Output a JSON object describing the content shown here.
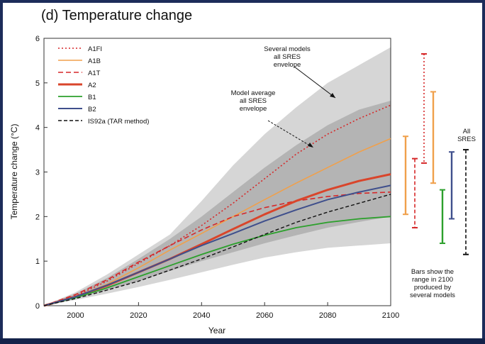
{
  "chart_data": {
    "type": "line",
    "title": "(d) Temperature change",
    "xlabel": "Year",
    "ylabel": "Temperature change (°C)",
    "xlim": [
      1990,
      2100
    ],
    "ylim": [
      0,
      6
    ],
    "xticks": [
      2000,
      2020,
      2040,
      2060,
      2080,
      2100
    ],
    "yticks": [
      0,
      1,
      2,
      3,
      4,
      5,
      6
    ],
    "grid": false,
    "legend_position": "top-left",
    "series": [
      {
        "name": "A1FI",
        "color": "#d62728",
        "dash": "2,3",
        "width": 1.6,
        "x": [
          1990,
          2000,
          2010,
          2020,
          2030,
          2040,
          2050,
          2060,
          2070,
          2080,
          2090,
          2100
        ],
        "y": [
          0,
          0.22,
          0.55,
          0.95,
          1.35,
          1.8,
          2.3,
          2.85,
          3.4,
          3.85,
          4.2,
          4.5
        ]
      },
      {
        "name": "A1B",
        "color": "#f0a04b",
        "dash": "",
        "width": 1.6,
        "x": [
          1990,
          2000,
          2010,
          2020,
          2030,
          2040,
          2050,
          2060,
          2070,
          2080,
          2090,
          2100
        ],
        "y": [
          0,
          0.2,
          0.48,
          0.85,
          1.25,
          1.62,
          2.0,
          2.38,
          2.75,
          3.1,
          3.45,
          3.75
        ]
      },
      {
        "name": "A1T",
        "color": "#d62728",
        "dash": "7,4",
        "width": 1.6,
        "x": [
          1990,
          2000,
          2010,
          2020,
          2030,
          2040,
          2050,
          2060,
          2070,
          2080,
          2090,
          2100
        ],
        "y": [
          0,
          0.25,
          0.58,
          0.98,
          1.35,
          1.7,
          2.0,
          2.2,
          2.35,
          2.45,
          2.52,
          2.55
        ]
      },
      {
        "name": "A2",
        "color": "#d9452b",
        "dash": "",
        "width": 3,
        "x": [
          1990,
          2000,
          2010,
          2020,
          2030,
          2040,
          2050,
          2060,
          2070,
          2080,
          2090,
          2100
        ],
        "y": [
          0,
          0.2,
          0.45,
          0.75,
          1.05,
          1.38,
          1.72,
          2.05,
          2.35,
          2.6,
          2.8,
          2.95
        ]
      },
      {
        "name": "B1",
        "color": "#2ca02c",
        "dash": "",
        "width": 1.8,
        "x": [
          1990,
          2000,
          2010,
          2020,
          2030,
          2040,
          2050,
          2060,
          2070,
          2080,
          2090,
          2100
        ],
        "y": [
          0,
          0.18,
          0.4,
          0.65,
          0.9,
          1.15,
          1.38,
          1.58,
          1.75,
          1.87,
          1.95,
          2.0
        ]
      },
      {
        "name": "B2",
        "color": "#3f4f8c",
        "dash": "",
        "width": 2,
        "x": [
          1990,
          2000,
          2010,
          2020,
          2030,
          2040,
          2050,
          2060,
          2070,
          2080,
          2090,
          2100
        ],
        "y": [
          0,
          0.2,
          0.46,
          0.75,
          1.05,
          1.35,
          1.62,
          1.9,
          2.15,
          2.38,
          2.55,
          2.7
        ]
      },
      {
        "name": "IS92a (TAR method)",
        "color": "#111111",
        "dash": "5,3",
        "width": 1.4,
        "x": [
          1990,
          2000,
          2010,
          2020,
          2030,
          2040,
          2050,
          2060,
          2070,
          2080,
          2090,
          2100
        ],
        "y": [
          0,
          0.16,
          0.35,
          0.55,
          0.8,
          1.05,
          1.32,
          1.6,
          1.87,
          2.1,
          2.3,
          2.5
        ]
      }
    ],
    "envelopes": [
      {
        "name": "Several models all SRES envelope",
        "color": "#d6d6d6",
        "x": [
          1990,
          2000,
          2010,
          2020,
          2030,
          2040,
          2050,
          2060,
          2070,
          2080,
          2090,
          2100
        ],
        "upper": [
          0,
          0.3,
          0.7,
          1.15,
          1.6,
          2.35,
          3.15,
          3.85,
          4.45,
          5.0,
          5.4,
          5.8
        ],
        "lower": [
          0,
          0.13,
          0.27,
          0.42,
          0.58,
          0.75,
          0.92,
          1.08,
          1.2,
          1.3,
          1.35,
          1.4
        ]
      },
      {
        "name": "Model average all SRES envelope",
        "color": "#b4b4b4",
        "x": [
          1990,
          2000,
          2010,
          2020,
          2030,
          2040,
          2050,
          2060,
          2070,
          2080,
          2090,
          2100
        ],
        "upper": [
          0,
          0.27,
          0.62,
          1.05,
          1.5,
          2.0,
          2.55,
          3.1,
          3.6,
          4.05,
          4.4,
          4.6
        ],
        "lower": [
          0,
          0.16,
          0.35,
          0.55,
          0.78,
          1.0,
          1.2,
          1.4,
          1.58,
          1.75,
          1.88,
          2.0
        ]
      }
    ],
    "range_bars": [
      {
        "color": "#f0a04b",
        "lo": 2.05,
        "hi": 3.8,
        "style": "solid"
      },
      {
        "color": "#d62728",
        "lo": 1.75,
        "hi": 3.3,
        "style": "dashed"
      },
      {
        "color": "#d62728",
        "lo": 3.2,
        "hi": 5.65,
        "style": "dotted"
      },
      {
        "color": "#f0a04b",
        "lo": 2.75,
        "hi": 4.8,
        "style": "solid"
      },
      {
        "color": "#2ca02c",
        "lo": 1.4,
        "hi": 2.6,
        "style": "solid"
      },
      {
        "color": "#3f4f8c",
        "lo": 1.95,
        "hi": 3.45,
        "style": "solid"
      },
      {
        "color": "#111111",
        "lo": 1.15,
        "hi": 3.5,
        "style": "dashed"
      }
    ],
    "annotations": {
      "several_models": "Several models\nall SRES\nenvelope",
      "model_average": "Model average\nall SRES\nenvelope",
      "all_sres": "All\nSRES",
      "bars_note": "Bars show the\nrange in 2100\nproduced by\nseveral models"
    }
  }
}
